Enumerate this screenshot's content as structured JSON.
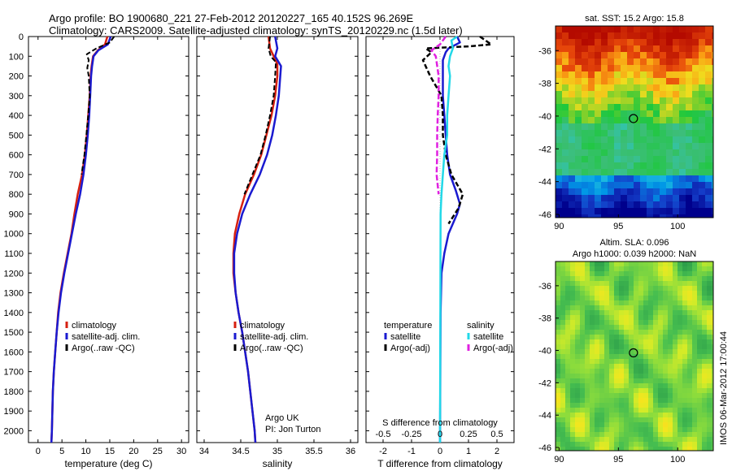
{
  "header": {
    "line1": "Argo profile: BO 1900680_221 27-Feb-2012 20120227_165 40.152S 96.269E",
    "line2": "Climatology: CARS2009. Satellite-adjusted climatology: synTS_20120229.nc (1.5d later)"
  },
  "credits": {
    "org": "Argo UK",
    "pi": "PI: Jon Turton",
    "footer": "IMOS 06-Mar-2012 17:00:44"
  },
  "colors": {
    "climatology": "#d62010",
    "satellite": "#1a1ad0",
    "argo": "#000000",
    "salinity_sat": "#22d8e8",
    "salinity_argo": "#e020e0"
  },
  "depth_axis": {
    "ticks": [
      0,
      100,
      200,
      300,
      400,
      500,
      600,
      700,
      800,
      900,
      1000,
      1100,
      1200,
      1300,
      1400,
      1500,
      1600,
      1700,
      1800,
      1900,
      2000
    ],
    "range": [
      0,
      2060
    ]
  },
  "chart_data": [
    {
      "type": "line",
      "panel": "temperature",
      "xlabel": "temperature (deg C)",
      "xticks": [
        0,
        5,
        10,
        15,
        20,
        25,
        30
      ],
      "xlim": [
        -2,
        31.5
      ],
      "legend": [
        "climatology",
        "satellite-adj. clim.",
        "Argo(..raw -QC)"
      ],
      "series": [
        {
          "name": "climatology",
          "points": [
            [
              14.5,
              0
            ],
            [
              14.0,
              40
            ],
            [
              12.5,
              70
            ],
            [
              11.5,
              100
            ],
            [
              11.2,
              150
            ],
            [
              11.0,
              200
            ],
            [
              10.8,
              300
            ],
            [
              10.5,
              400
            ],
            [
              10.2,
              500
            ],
            [
              9.8,
              600
            ],
            [
              9.2,
              700
            ],
            [
              8.3,
              800
            ],
            [
              7.6,
              900
            ],
            [
              7.0,
              1000
            ],
            [
              6.2,
              1100
            ],
            [
              5.4,
              1200
            ],
            [
              4.7,
              1300
            ],
            [
              4.2,
              1400
            ],
            [
              3.9,
              1500
            ],
            [
              3.6,
              1600
            ],
            [
              3.3,
              1700
            ],
            [
              3.1,
              1800
            ],
            [
              3.0,
              1900
            ],
            [
              2.9,
              2000
            ],
            [
              2.8,
              2060
            ]
          ]
        },
        {
          "name": "satellite-adj. clim.",
          "points": [
            [
              15.2,
              0
            ],
            [
              14.6,
              40
            ],
            [
              12.6,
              70
            ],
            [
              11.6,
              100
            ],
            [
              11.3,
              150
            ],
            [
              11.1,
              200
            ],
            [
              10.9,
              300
            ],
            [
              10.7,
              400
            ],
            [
              10.4,
              500
            ],
            [
              10.0,
              600
            ],
            [
              9.5,
              700
            ],
            [
              8.8,
              800
            ],
            [
              7.9,
              900
            ],
            [
              7.1,
              1000
            ],
            [
              6.3,
              1100
            ],
            [
              5.5,
              1200
            ],
            [
              4.8,
              1300
            ],
            [
              4.3,
              1400
            ],
            [
              3.9,
              1500
            ],
            [
              3.6,
              1600
            ],
            [
              3.3,
              1700
            ],
            [
              3.1,
              1800
            ],
            [
              3.0,
              1900
            ],
            [
              2.9,
              2000
            ],
            [
              2.8,
              2060
            ]
          ]
        },
        {
          "name": "Argo(..raw -QC)",
          "points": [
            [
              15.9,
              0
            ],
            [
              15.0,
              30
            ],
            [
              12.2,
              60
            ],
            [
              10.2,
              90
            ],
            [
              10.6,
              120
            ],
            [
              10.3,
              160
            ],
            [
              10.6,
              200
            ],
            [
              10.8,
              300
            ],
            [
              10.5,
              400
            ],
            [
              10.1,
              500
            ],
            [
              9.7,
              600
            ],
            [
              9.1,
              700
            ]
          ]
        }
      ]
    },
    {
      "type": "line",
      "panel": "salinity",
      "xlabel": "salinity",
      "xticks": [
        34,
        34.5,
        35,
        35.5,
        36
      ],
      "xtick_labels": [
        "34",
        "34.5",
        "35",
        "35.5",
        "36"
      ],
      "xlim": [
        33.9,
        36.1
      ],
      "legend": [
        "climatology",
        "satellite-adj. clim.",
        "Argo(..raw -QC)"
      ],
      "series": [
        {
          "name": "climatology",
          "points": [
            [
              34.88,
              0
            ],
            [
              34.9,
              60
            ],
            [
              34.95,
              100
            ],
            [
              35.0,
              140
            ],
            [
              35.0,
              200
            ],
            [
              34.97,
              300
            ],
            [
              34.92,
              400
            ],
            [
              34.85,
              500
            ],
            [
              34.78,
              600
            ],
            [
              34.68,
              700
            ],
            [
              34.56,
              800
            ],
            [
              34.48,
              900
            ],
            [
              34.42,
              1000
            ],
            [
              34.4,
              1100
            ],
            [
              34.4,
              1200
            ],
            [
              34.43,
              1300
            ],
            [
              34.47,
              1400
            ],
            [
              34.52,
              1500
            ],
            [
              34.56,
              1600
            ],
            [
              34.6,
              1700
            ],
            [
              34.63,
              1800
            ],
            [
              34.66,
              1900
            ],
            [
              34.69,
              2000
            ],
            [
              34.7,
              2060
            ]
          ]
        },
        {
          "name": "satellite-adj. clim.",
          "points": [
            [
              34.97,
              0
            ],
            [
              35.0,
              60
            ],
            [
              34.97,
              100
            ],
            [
              35.05,
              150
            ],
            [
              35.04,
              200
            ],
            [
              35.02,
              300
            ],
            [
              34.98,
              400
            ],
            [
              34.93,
              500
            ],
            [
              34.86,
              600
            ],
            [
              34.76,
              700
            ],
            [
              34.63,
              800
            ],
            [
              34.52,
              900
            ],
            [
              34.45,
              1000
            ],
            [
              34.41,
              1100
            ],
            [
              34.41,
              1200
            ],
            [
              34.43,
              1300
            ],
            [
              34.47,
              1400
            ],
            [
              34.52,
              1500
            ],
            [
              34.56,
              1600
            ],
            [
              34.6,
              1700
            ],
            [
              34.63,
              1800
            ],
            [
              34.66,
              1900
            ],
            [
              34.69,
              2000
            ],
            [
              34.7,
              2060
            ]
          ]
        },
        {
          "name": "Argo(..raw -QC)",
          "points": [
            [
              34.9,
              0
            ],
            [
              34.88,
              60
            ],
            [
              34.91,
              100
            ],
            [
              34.98,
              130
            ],
            [
              34.97,
              200
            ],
            [
              34.95,
              300
            ],
            [
              34.9,
              400
            ],
            [
              34.84,
              500
            ],
            [
              34.77,
              600
            ],
            [
              34.66,
              700
            ],
            [
              34.55,
              800
            ]
          ]
        }
      ]
    },
    {
      "type": "line",
      "panel": "difference",
      "xlabel": "T difference from climatology",
      "xlabel_top": "S difference from climatology",
      "xticks": [
        -2,
        -1,
        0,
        1,
        2
      ],
      "xtick_labels_top": [
        "-0.5",
        "-0.25",
        "0",
        "0.25",
        "0.5"
      ],
      "xlim": [
        -2.6,
        2.6
      ],
      "legend_groups": [
        {
          "title": "temperature",
          "items": [
            "satellite",
            "Argo(-adj)"
          ]
        },
        {
          "title": "salinity",
          "items": [
            "satellite",
            "Argo(-adj)"
          ]
        }
      ],
      "series": [
        {
          "name": "T satellite",
          "points": [
            [
              0.6,
              0
            ],
            [
              0.7,
              30
            ],
            [
              0.3,
              60
            ],
            [
              0.2,
              80
            ],
            [
              0.1,
              120
            ],
            [
              0.1,
              200
            ],
            [
              0.1,
              300
            ],
            [
              0.15,
              400
            ],
            [
              0.2,
              500
            ],
            [
              0.25,
              600
            ],
            [
              0.35,
              700
            ],
            [
              0.55,
              780
            ],
            [
              0.7,
              850
            ],
            [
              0.6,
              900
            ],
            [
              0.3,
              1000
            ],
            [
              0.15,
              1100
            ],
            [
              0.05,
              1200
            ],
            [
              0.02,
              1400
            ],
            [
              0.0,
              2060
            ]
          ]
        },
        {
          "name": "T Argo(-adj)",
          "points": [
            [
              1.4,
              0
            ],
            [
              1.8,
              40
            ],
            [
              1.0,
              50
            ],
            [
              -0.5,
              60
            ],
            [
              -0.3,
              80
            ],
            [
              -0.6,
              120
            ],
            [
              -0.35,
              200
            ],
            [
              0.05,
              300
            ],
            [
              0.1,
              400
            ],
            [
              0.1,
              500
            ],
            [
              0.2,
              600
            ],
            [
              0.4,
              700
            ],
            [
              0.8,
              800
            ],
            [
              0.65,
              870
            ],
            [
              0.3,
              950
            ]
          ]
        },
        {
          "name": "S satellite",
          "points": [
            [
              0.6,
              0
            ],
            [
              0.4,
              20
            ],
            [
              0.45,
              60
            ],
            [
              0.35,
              100
            ],
            [
              0.3,
              150
            ],
            [
              0.35,
              200
            ],
            [
              0.3,
              300
            ],
            [
              0.25,
              400
            ],
            [
              0.25,
              500
            ],
            [
              0.15,
              600
            ],
            [
              0.1,
              700
            ],
            [
              0.05,
              800
            ],
            [
              0.02,
              900
            ],
            [
              0.0,
              2060
            ]
          ]
        },
        {
          "name": "S Argo(-adj)",
          "points": [
            [
              0.2,
              0
            ],
            [
              0.0,
              40
            ],
            [
              -0.3,
              70
            ],
            [
              -0.15,
              100
            ],
            [
              -0.05,
              200
            ],
            [
              -0.05,
              300
            ],
            [
              -0.08,
              400
            ],
            [
              -0.1,
              500
            ],
            [
              -0.1,
              600
            ],
            [
              -0.12,
              700
            ],
            [
              -0.05,
              800
            ]
          ]
        }
      ]
    },
    {
      "type": "heatmap",
      "panel": "sst_map",
      "title": "sat. SST: 15.2 Argo: 15.8",
      "xticks": [
        90,
        95,
        100
      ],
      "yticks": [
        -36,
        -38,
        -40,
        -42,
        -44,
        -46
      ],
      "xlim": [
        89.7,
        103
      ],
      "ylim": [
        -46.2,
        -34.5
      ],
      "marker": [
        96.27,
        -40.15
      ]
    },
    {
      "type": "heatmap",
      "panel": "sla_map",
      "title_line1": "Altim. SLA: 0.096",
      "title_line2": "Argo h1000: 0.039 h2000: NaN",
      "xticks": [
        90,
        95,
        100
      ],
      "yticks": [
        -36,
        -38,
        -40,
        -42,
        -44,
        -46
      ],
      "xlim": [
        89.7,
        103
      ],
      "ylim": [
        -46.2,
        -34.5
      ],
      "marker": [
        96.27,
        -40.15
      ]
    }
  ]
}
